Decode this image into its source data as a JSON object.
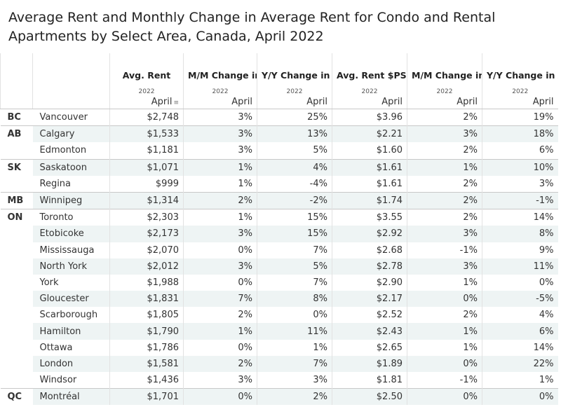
{
  "title": "Average Rent and Monthly Change in Average Rent for Condo and Rental Apartments by Select Area, Canada, April 2022",
  "columns": [
    {
      "label": "Avg. Rent",
      "year": "2022",
      "month": "April"
    },
    {
      "label": "M/M Change in Avg Rent",
      "year": "2022",
      "month": "April"
    },
    {
      "label": "Y/Y Change in Avg Rent",
      "year": "2022",
      "month": "April"
    },
    {
      "label": "Avg. Rent $PSF",
      "year": "2022",
      "month": "April"
    },
    {
      "label": "M/M Change in Avg Rent $PSF",
      "year": "2022",
      "month": "April"
    },
    {
      "label": "Y/Y Change in Avg Rent $PSF",
      "year": "2022",
      "month": "April"
    }
  ],
  "sort_glyph": "≡",
  "rows": [
    {
      "prov": "BC",
      "city": "Vancouver",
      "vals": [
        "$2,748",
        "3%",
        "25%",
        "$3.96",
        "2%",
        "19%"
      ]
    },
    {
      "prov": "AB",
      "city": "Calgary",
      "vals": [
        "$1,533",
        "3%",
        "13%",
        "$2.21",
        "3%",
        "18%"
      ]
    },
    {
      "prov": "",
      "city": "Edmonton",
      "vals": [
        "$1,181",
        "3%",
        "5%",
        "$1.60",
        "2%",
        "6%"
      ]
    },
    {
      "prov": "SK",
      "city": "Saskatoon",
      "vals": [
        "$1,071",
        "1%",
        "4%",
        "$1.61",
        "1%",
        "10%"
      ]
    },
    {
      "prov": "",
      "city": "Regina",
      "vals": [
        "$999",
        "1%",
        "-4%",
        "$1.61",
        "2%",
        "3%"
      ]
    },
    {
      "prov": "MB",
      "city": "Winnipeg",
      "vals": [
        "$1,314",
        "2%",
        "-2%",
        "$1.74",
        "2%",
        "-1%"
      ]
    },
    {
      "prov": "ON",
      "city": "Toronto",
      "vals": [
        "$2,303",
        "1%",
        "15%",
        "$3.55",
        "2%",
        "14%"
      ]
    },
    {
      "prov": "",
      "city": "Etobicoke",
      "vals": [
        "$2,173",
        "3%",
        "15%",
        "$2.92",
        "3%",
        "8%"
      ]
    },
    {
      "prov": "",
      "city": "Mississauga",
      "vals": [
        "$2,070",
        "0%",
        "7%",
        "$2.68",
        "-1%",
        "9%"
      ]
    },
    {
      "prov": "",
      "city": "North York",
      "vals": [
        "$2,012",
        "3%",
        "5%",
        "$2.78",
        "3%",
        "11%"
      ]
    },
    {
      "prov": "",
      "city": "York",
      "vals": [
        "$1,988",
        "0%",
        "7%",
        "$2.90",
        "1%",
        "0%"
      ]
    },
    {
      "prov": "",
      "city": "Gloucester",
      "vals": [
        "$1,831",
        "7%",
        "8%",
        "$2.17",
        "0%",
        "-5%"
      ]
    },
    {
      "prov": "",
      "city": "Scarborough",
      "vals": [
        "$1,805",
        "2%",
        "0%",
        "$2.52",
        "2%",
        "4%"
      ]
    },
    {
      "prov": "",
      "city": "Hamilton",
      "vals": [
        "$1,790",
        "1%",
        "11%",
        "$2.43",
        "1%",
        "6%"
      ]
    },
    {
      "prov": "",
      "city": "Ottawa",
      "vals": [
        "$1,786",
        "0%",
        "1%",
        "$2.65",
        "1%",
        "14%"
      ]
    },
    {
      "prov": "",
      "city": "London",
      "vals": [
        "$1,581",
        "2%",
        "7%",
        "$1.89",
        "0%",
        "22%"
      ]
    },
    {
      "prov": "",
      "city": "Windsor",
      "vals": [
        "$1,436",
        "3%",
        "3%",
        "$1.81",
        "-1%",
        "1%"
      ]
    },
    {
      "prov": "QC",
      "city": "Montréal",
      "vals": [
        "$1,701",
        "0%",
        "2%",
        "$2.50",
        "0%",
        "0%"
      ]
    }
  ]
}
